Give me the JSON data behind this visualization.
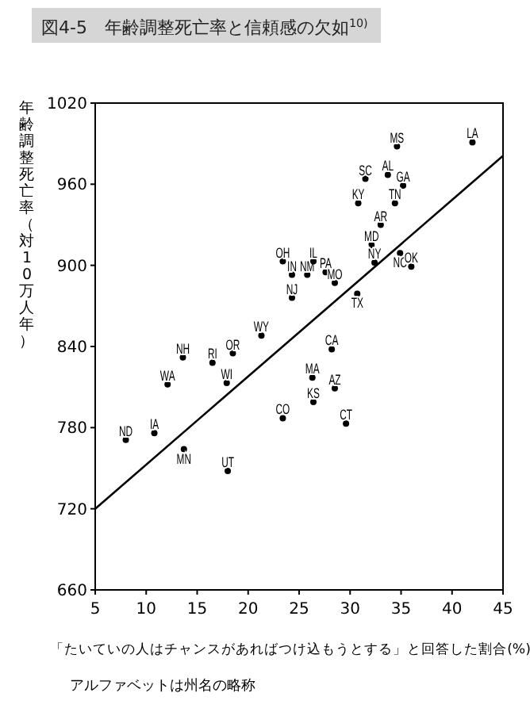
{
  "chart_data": {
    "type": "scatter",
    "title": "図4-5　年齢調整死亡率と信頼感の欠如$^{10)}$",
    "ylabel": "年齢調整死亡率（対10万人年）",
    "xlabel": "「たいていの人はチャンスがあればつけ込もうとする」と回答した割合(%)",
    "annotations": [
      "アルファベットは州名の略称"
    ],
    "xlim": [
      5,
      45
    ],
    "xticks": [
      5,
      10,
      15,
      20,
      25,
      30,
      35,
      40,
      45
    ],
    "ylim": [
      660,
      1020
    ],
    "yticks": [
      660,
      720,
      780,
      840,
      900,
      960,
      1020
    ],
    "series": [
      {
        "marker": "circle",
        "color": "#000000",
        "x": [
          34.6,
          42.0,
          31.5,
          33.7,
          35.2,
          30.8,
          34.4,
          33.0,
          32.1,
          32.4,
          34.9,
          36.0,
          23.4,
          24.3,
          25.8,
          26.4,
          27.6,
          28.5,
          30.7,
          24.3,
          21.3,
          28.2,
          26.3,
          28.5,
          26.4,
          23.4,
          29.6,
          13.6,
          16.5,
          18.5,
          12.1,
          17.9,
          8.0,
          10.8,
          13.7,
          18.0
        ],
        "values": [
          988,
          991,
          964,
          967,
          959,
          946,
          946,
          930,
          915,
          902,
          909,
          899,
          903,
          893,
          893,
          903,
          895,
          887,
          879,
          876,
          848,
          838,
          817,
          809,
          799,
          787,
          783,
          832,
          828,
          835,
          812,
          813,
          771,
          776,
          764,
          748
        ],
        "value_labels": [
          "MS",
          "LA",
          "SC",
          "AL",
          "GA",
          "KY",
          "TN",
          "AR",
          "MD",
          "NY",
          "NC",
          "OK",
          "OH",
          "IN",
          "NM",
          "IL",
          "PA",
          "MO",
          "TX",
          "NJ",
          "WY",
          "CA",
          "MA",
          "AZ",
          "KS",
          "CO",
          "CT",
          "NH",
          "RI",
          "OR",
          "WA",
          "WI",
          "ND",
          "IA",
          "MN",
          "UT"
        ]
      },
      {
        "type": "line",
        "color": "#000000",
        "x": [
          5,
          45
        ],
        "values": [
          720,
          981
        ]
      }
    ]
  }
}
